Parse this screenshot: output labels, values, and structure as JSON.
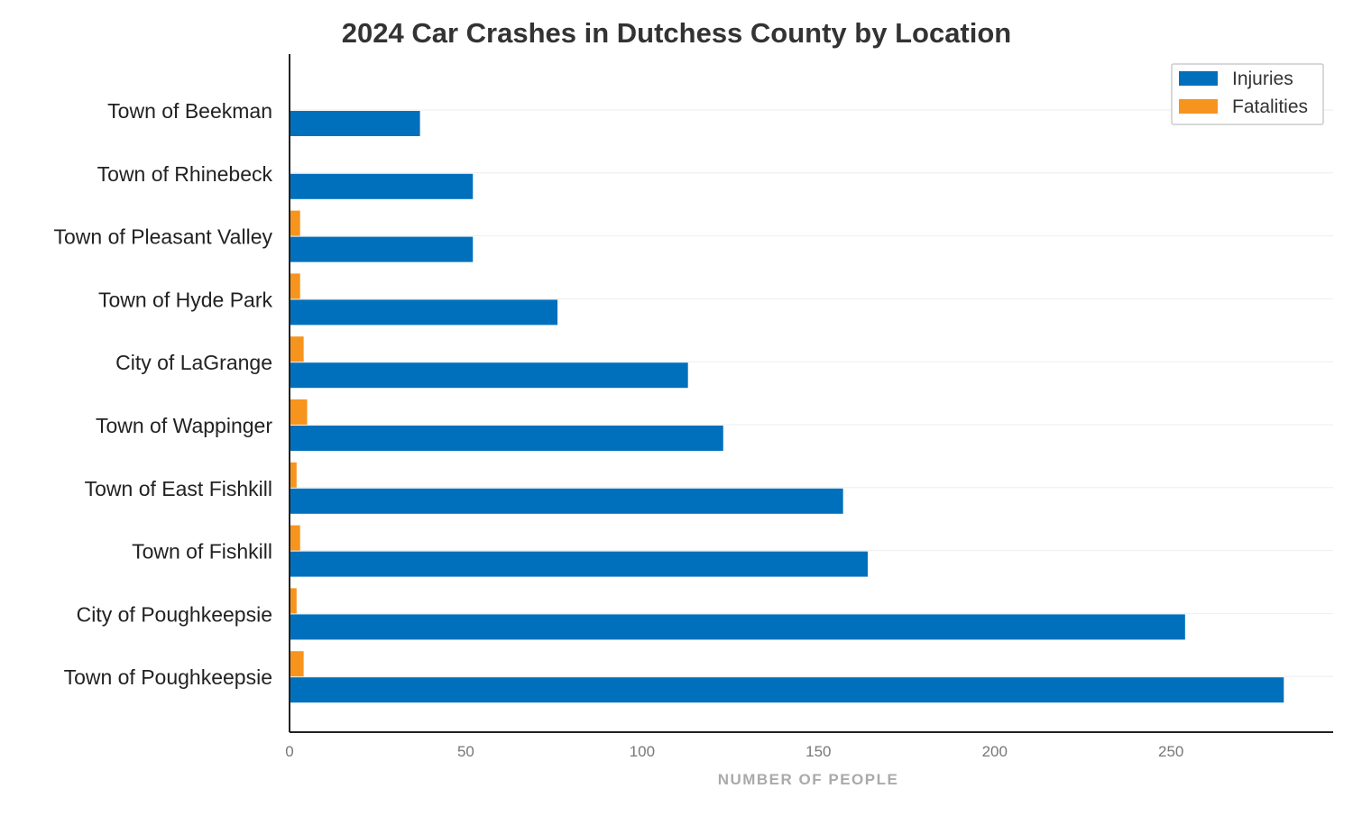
{
  "chart_data": {
    "type": "bar",
    "orientation": "horizontal",
    "title": "2024 Car Crashes in Dutchess County by Location",
    "xlabel": "NUMBER OF PEOPLE",
    "ylabel": "",
    "xlim": [
      0,
      296
    ],
    "xticks": [
      0,
      50,
      100,
      150,
      200,
      250
    ],
    "grid": true,
    "legend_position": "top-right",
    "categories": [
      "Town of Beekman",
      "Town of Rhinebeck",
      "Town of Pleasant Valley",
      "Town of Hyde Park",
      "City of LaGrange",
      "Town of Wappinger",
      "Town of East Fishkill",
      "Town of Fishkill",
      "City of Poughkeepsie",
      "Town of Poughkeepsie"
    ],
    "series": [
      {
        "name": "Injuries",
        "color": "#0070bc",
        "values": [
          37,
          52,
          52,
          76,
          113,
          123,
          157,
          164,
          254,
          282
        ]
      },
      {
        "name": "Fatalities",
        "color": "#f7941d",
        "values": [
          0,
          0,
          3,
          3,
          4,
          5,
          2,
          3,
          2,
          4
        ]
      }
    ]
  }
}
